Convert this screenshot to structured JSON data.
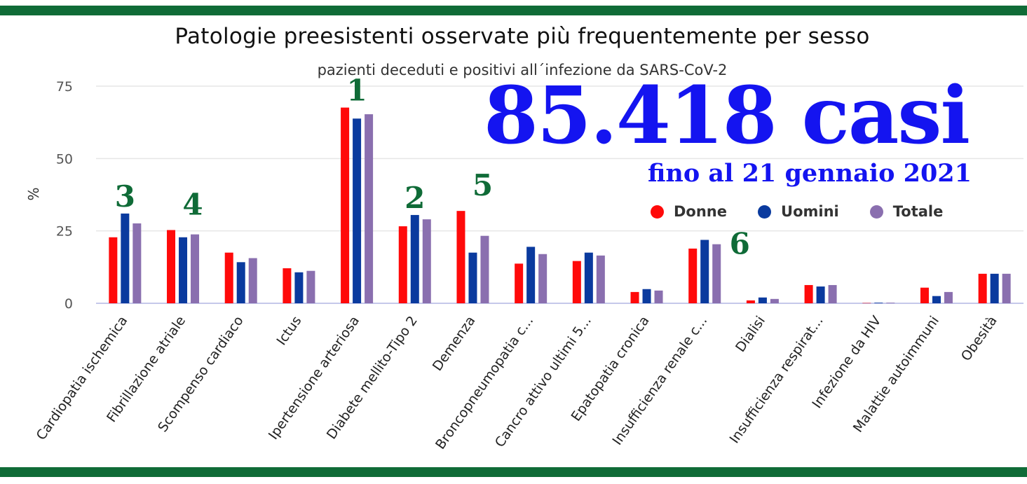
{
  "title": "Patologie preesistenti osservate più frequentemente per sesso",
  "subtitle": "pazienti deceduti e positivi all´infezione da SARS-CoV-2",
  "overlay": {
    "count": "85.418 casi",
    "date": "fino al 21 gennaio 2021"
  },
  "colors": {
    "donne": "#ff0a0a",
    "uomini": "#0a3a9e",
    "totale": "#8a6faf",
    "rank": "#0f6b37",
    "overlay": "#1414f0",
    "band": "#0f6b37"
  },
  "chart_data": {
    "type": "bar",
    "title": "Patologie preesistenti osservate più frequentemente per sesso",
    "subtitle": "pazienti deceduti e positivi all´infezione da SARS-CoV-2",
    "ylabel": "%",
    "ylim": [
      0,
      75
    ],
    "yticks": [
      0,
      25,
      50,
      75
    ],
    "grid": true,
    "legend_position": "right",
    "categories": [
      "Cardiopatia ischemica",
      "Fibrillazione atriale",
      "Scompenso cardiaco",
      "Ictus",
      "Ipertensione arteriosa",
      "Diabete mellito-Tipo 2",
      "Demenza",
      "Broncopneumopatia c...",
      "Cancro attivo ultimi 5...",
      "Epatopatia cronica",
      "Insufficienza renale c...",
      "Dialisi",
      "Insufficienza respirat...",
      "Infezione da HIV",
      "Malattie autoimmuni",
      "Obesità"
    ],
    "series": [
      {
        "name": "Donne",
        "color": "#ff0a0a",
        "values": [
          22.8,
          25.3,
          17.5,
          12.1,
          67.6,
          26.6,
          31.9,
          13.7,
          14.6,
          3.9,
          18.9,
          1.0,
          6.3,
          0.1,
          5.4,
          10.2
        ]
      },
      {
        "name": "Uomini",
        "color": "#0a3a9e",
        "values": [
          31.0,
          22.8,
          14.2,
          10.7,
          63.8,
          30.5,
          17.5,
          19.5,
          17.5,
          4.9,
          21.9,
          2.0,
          5.8,
          0.2,
          2.5,
          10.2
        ]
      },
      {
        "name": "Totale",
        "color": "#8a6faf",
        "values": [
          27.6,
          23.8,
          15.6,
          11.2,
          65.3,
          29.0,
          23.3,
          17.0,
          16.5,
          4.4,
          20.4,
          1.5,
          6.3,
          0.2,
          3.9,
          10.2
        ]
      }
    ],
    "rank_annotations": [
      {
        "label": "1",
        "category": "Ipertensione arteriosa"
      },
      {
        "label": "2",
        "category": "Diabete mellito-Tipo 2"
      },
      {
        "label": "3",
        "category": "Cardiopatia ischemica"
      },
      {
        "label": "4",
        "category": "Fibrillazione atriale"
      },
      {
        "label": "5",
        "category": "Demenza"
      },
      {
        "label": "6",
        "category": "Insufficienza renale c..."
      }
    ]
  }
}
